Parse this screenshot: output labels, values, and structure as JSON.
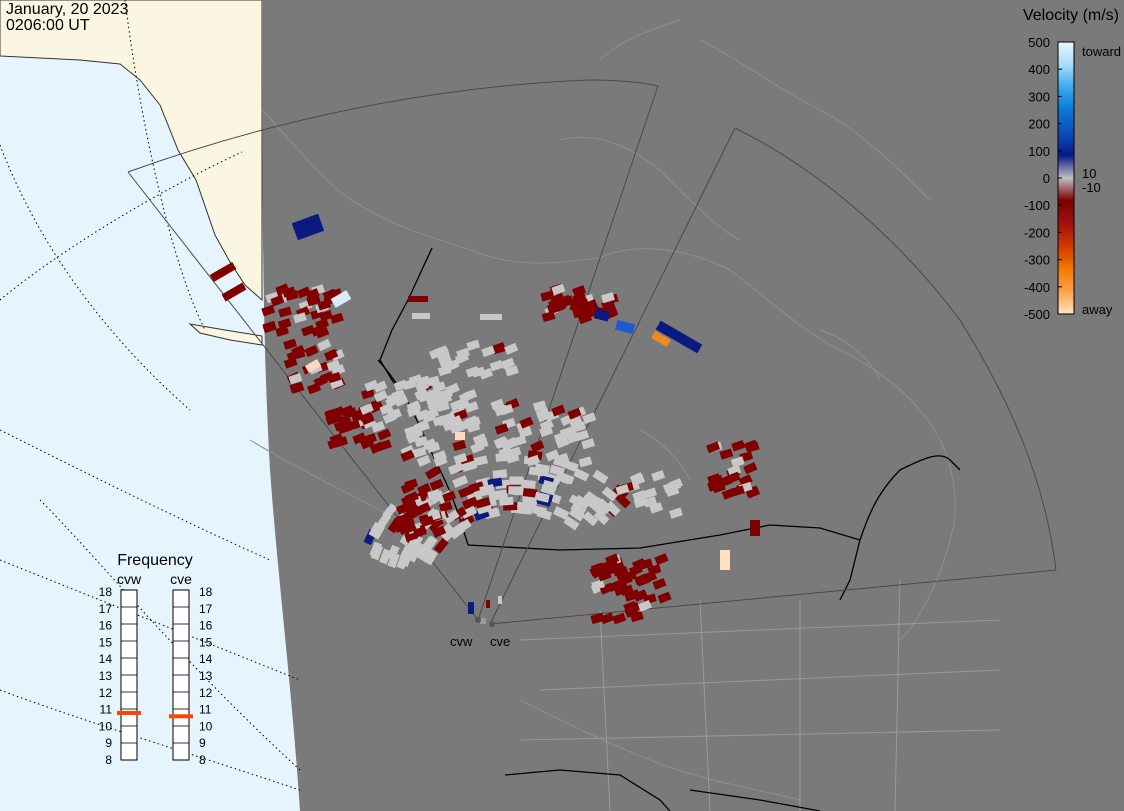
{
  "header": {
    "date": "January, 20 2023",
    "time": "0206:00 UT"
  },
  "colors": {
    "ocean": "#e6f4fe",
    "land": "#fbf6e2",
    "night": "#7a7a7a",
    "borders": "#000000",
    "coast_dark": "#8e8e8e",
    "fov": "#4a4a4a",
    "ground_scatter": "#c8c8c8",
    "marker": "#ff4400"
  },
  "radars": [
    {
      "code": "cvw"
    },
    {
      "code": "cve"
    }
  ],
  "velocity_scale": {
    "title": "Velocity (m/s)",
    "ticks": [
      "500",
      "400",
      "300",
      "200",
      "100",
      "0",
      "-100",
      "-200",
      "-300",
      "-400",
      "-500"
    ],
    "minor_ticks": [
      "10",
      "-10"
    ],
    "toward_label": "toward",
    "away_label": "away",
    "stops": [
      "#e7f6fe",
      "#a9dcfa",
      "#3aa8f0",
      "#0a78d6",
      "#0b4fb8",
      "#081a8a",
      "#c0c0c0",
      "#7c0000",
      "#a31010",
      "#d23800",
      "#f07800",
      "#ffa24a",
      "#ffe3c4"
    ]
  },
  "frequency_panel": {
    "title": "Frequency",
    "radars": [
      "cvw",
      "cve"
    ],
    "ticks": [
      "18",
      "17",
      "16",
      "15",
      "14",
      "13",
      "12",
      "11",
      "10",
      "9",
      "8"
    ],
    "range_mhz": [
      8,
      18
    ],
    "cvw_mhz": 10.8,
    "cve_mhz": 10.6
  }
}
